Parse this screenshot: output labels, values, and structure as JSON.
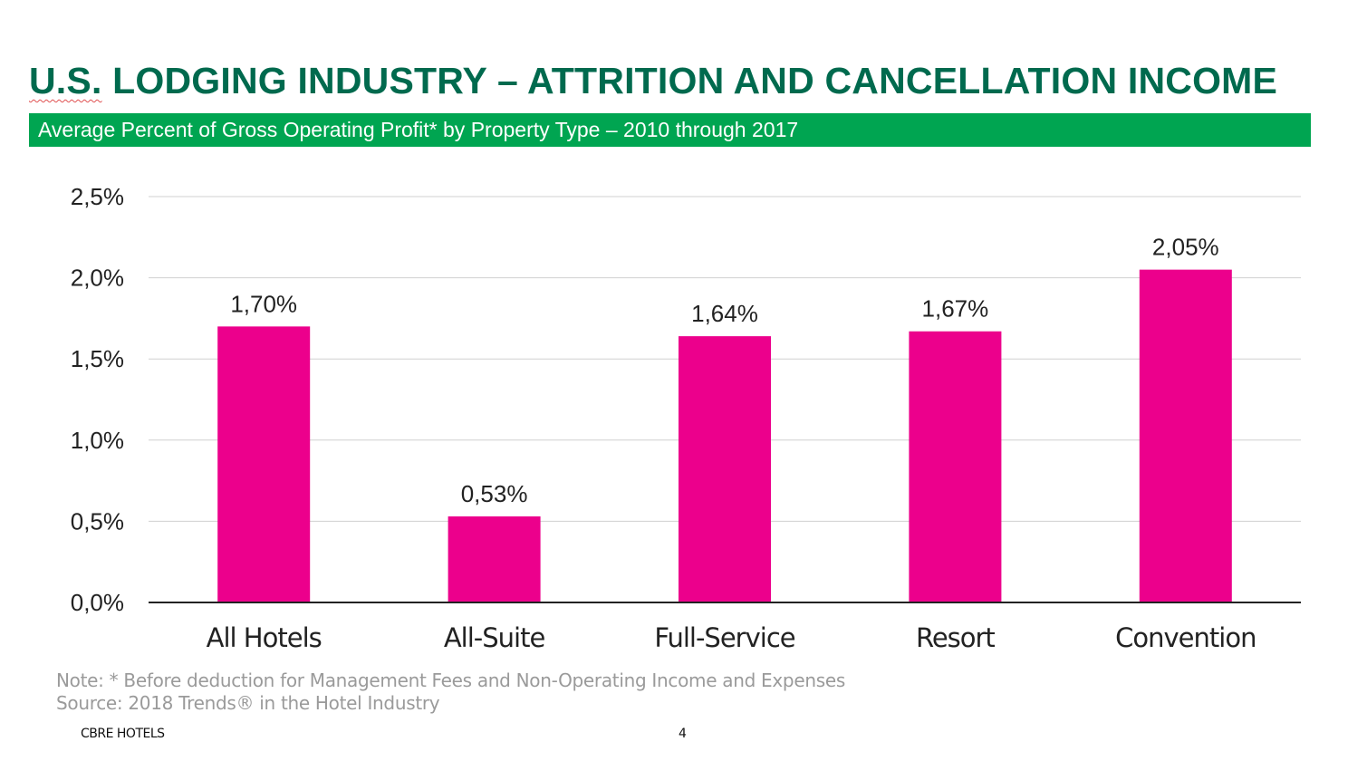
{
  "title_prefix": "U.S.",
  "title_rest": " LODGING INDUSTRY – ATTRITION AND CANCELLATION INCOME",
  "subtitle": "Average Percent of Gross Operating Profit* by Property Type – 2010 through 2017",
  "note": "Note: * Before deduction for Management Fees and Non-Operating Income and Expenses",
  "source": "Source: 2018 Trends® in the Hotel Industry",
  "footer_brand": "CBRE HOTELS",
  "page_number": "4",
  "colors": {
    "title": "#006A4E",
    "band": "#00A551",
    "bar": "#EC008C",
    "grid": "#d0d0d0"
  },
  "chart_data": {
    "type": "bar",
    "categories": [
      "All Hotels",
      "All-Suite",
      "Full-Service",
      "Resort",
      "Convention"
    ],
    "values": [
      1.7,
      0.53,
      1.64,
      1.67,
      2.05
    ],
    "data_labels": [
      "1,70%",
      "0,53%",
      "1,64%",
      "1,67%",
      "2,05%"
    ],
    "yticks": [
      0,
      0.5,
      1.0,
      1.5,
      2.0,
      2.5
    ],
    "ytick_labels": [
      "0,0%",
      "0,5%",
      "1,0%",
      "1,5%",
      "2,0%",
      "2,5%"
    ],
    "ylim": [
      0,
      2.5
    ],
    "unit": "%",
    "grid": true,
    "legend": "none"
  }
}
